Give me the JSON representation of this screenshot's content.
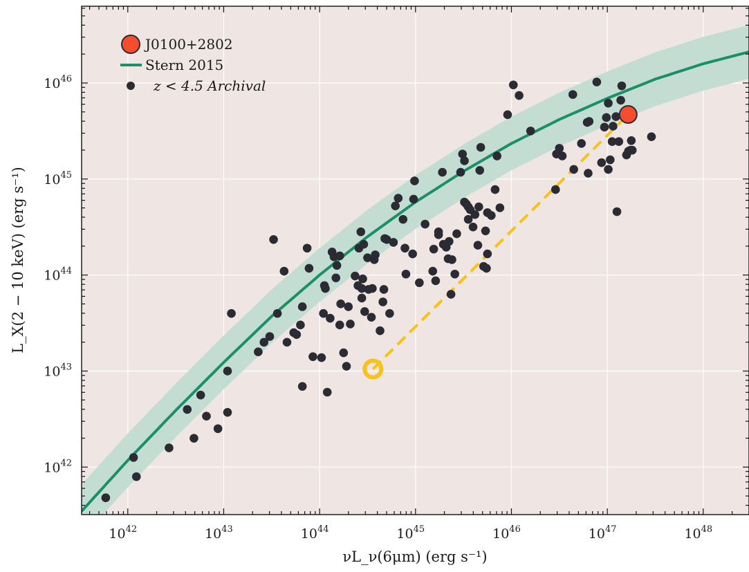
{
  "chart_data": {
    "type": "scatter",
    "xlabel": "νL_ν(6μm)  (erg s⁻¹)",
    "ylabel": "L_X(2 − 10 keV)  (erg s⁻¹)",
    "x_scale": "log",
    "y_scale": "log",
    "xlim": [
      3.3e+41,
      3e+48
    ],
    "ylim": [
      3.2e+41,
      6.3e+46
    ],
    "grid": true,
    "legend_position": "top-left",
    "colors": {
      "background": "#efe6e4",
      "band": "#c4ddd2",
      "stern_line": "#1b8f6a",
      "archival": "#2b2b33",
      "target": "#f54d2d",
      "obscured_ring": "#f8c21a"
    },
    "x_ticks": [
      {
        "exp": 42,
        "label": "10",
        "sup": "42"
      },
      {
        "exp": 43,
        "label": "10",
        "sup": "43"
      },
      {
        "exp": 44,
        "label": "10",
        "sup": "44"
      },
      {
        "exp": 45,
        "label": "10",
        "sup": "45"
      },
      {
        "exp": 46,
        "label": "10",
        "sup": "46"
      },
      {
        "exp": 47,
        "label": "10",
        "sup": "47"
      },
      {
        "exp": 48,
        "label": "10",
        "sup": "48"
      }
    ],
    "y_ticks": [
      {
        "exp": 42,
        "label": "10",
        "sup": "42"
      },
      {
        "exp": 43,
        "label": "10",
        "sup": "43"
      },
      {
        "exp": 44,
        "label": "10",
        "sup": "44"
      },
      {
        "exp": 45,
        "label": "10",
        "sup": "45"
      },
      {
        "exp": 46,
        "label": "10",
        "sup": "46"
      }
    ],
    "legend": [
      {
        "label": "J0100+2802",
        "marker": "target"
      },
      {
        "label": "Stern 2015",
        "marker": "line"
      },
      {
        "label": "z < 4.5 Archival",
        "marker": "dot"
      }
    ],
    "stern_curve": {
      "name": "Stern 2015",
      "points": [
        [
          41.5,
          41.52
        ],
        [
          42.0,
          42.07
        ],
        [
          42.5,
          42.59
        ],
        [
          43.0,
          43.09
        ],
        [
          43.5,
          43.57
        ],
        [
          44.0,
          44.0
        ],
        [
          44.5,
          44.4
        ],
        [
          45.0,
          44.76
        ],
        [
          45.5,
          45.08
        ],
        [
          46.0,
          45.37
        ],
        [
          46.5,
          45.62
        ],
        [
          47.0,
          45.84
        ],
        [
          47.5,
          46.04
        ],
        [
          48.0,
          46.2
        ],
        [
          48.5,
          46.33
        ]
      ],
      "band_halfwidth_dex": 0.28
    },
    "j0100": {
      "name": "J0100+2802",
      "x": 1.65e+47,
      "y": 4.7e+45
    },
    "j0100_obscured": {
      "x": 3.6e+44,
      "y": 1.05e+43
    },
    "archival_log_points": [
      [
        41.77,
        41.68
      ],
      [
        42.06,
        42.1
      ],
      [
        42.09,
        41.9
      ],
      [
        42.43,
        42.2
      ],
      [
        42.62,
        42.6
      ],
      [
        42.69,
        42.3
      ],
      [
        42.76,
        42.75
      ],
      [
        42.82,
        42.53
      ],
      [
        42.94,
        42.4
      ],
      [
        43.04,
        42.57
      ],
      [
        43.04,
        43.0
      ],
      [
        43.08,
        43.6
      ],
      [
        43.36,
        43.2
      ],
      [
        43.42,
        43.3
      ],
      [
        43.48,
        43.36
      ],
      [
        43.52,
        44.37
      ],
      [
        43.56,
        43.6
      ],
      [
        43.63,
        44.04
      ],
      [
        43.66,
        43.3
      ],
      [
        43.73,
        43.4
      ],
      [
        43.76,
        43.38
      ],
      [
        43.8,
        43.48
      ],
      [
        43.82,
        43.67
      ],
      [
        43.82,
        42.84
      ],
      [
        43.87,
        44.28
      ],
      [
        43.89,
        44.07
      ],
      [
        43.93,
        43.15
      ],
      [
        44.02,
        43.14
      ],
      [
        44.04,
        43.6
      ],
      [
        44.05,
        43.89
      ],
      [
        44.06,
        43.86
      ],
      [
        44.08,
        42.78
      ],
      [
        44.11,
        43.55
      ],
      [
        44.13,
        44.24
      ],
      [
        44.15,
        44.19
      ],
      [
        44.17,
        43.97
      ],
      [
        44.18,
        44.1
      ],
      [
        44.21,
        43.48
      ],
      [
        44.21,
        44.2
      ],
      [
        44.22,
        43.7
      ],
      [
        44.25,
        43.19
      ],
      [
        44.28,
        43.05
      ],
      [
        44.3,
        43.67
      ],
      [
        44.32,
        43.49
      ],
      [
        44.37,
        43.99
      ],
      [
        44.4,
        43.89
      ],
      [
        44.41,
        44.28
      ],
      [
        44.43,
        44.45
      ],
      [
        44.44,
        43.76
      ],
      [
        44.44,
        43.86
      ],
      [
        44.45,
        43.96
      ],
      [
        44.46,
        44.32
      ],
      [
        44.47,
        43.62
      ],
      [
        44.5,
        44.18
      ],
      [
        44.51,
        43.85
      ],
      [
        44.54,
        43.56
      ],
      [
        44.55,
        43.86
      ],
      [
        44.57,
        44.16
      ],
      [
        44.58,
        44.21
      ],
      [
        44.63,
        43.42
      ],
      [
        44.66,
        43.72
      ],
      [
        44.67,
        43.85
      ],
      [
        44.68,
        44.38
      ],
      [
        44.7,
        44.37
      ],
      [
        44.73,
        43.6
      ],
      [
        44.77,
        44.34
      ],
      [
        44.79,
        44.72
      ],
      [
        44.82,
        44.8
      ],
      [
        44.87,
        44.58
      ],
      [
        44.89,
        44.28
      ],
      [
        44.9,
        44.01
      ],
      [
        44.97,
        44.22
      ],
      [
        44.98,
        44.79
      ],
      [
        44.99,
        44.98
      ],
      [
        45.04,
        43.92
      ],
      [
        45.1,
        44.53
      ],
      [
        45.18,
        44.04
      ],
      [
        45.19,
        44.27
      ],
      [
        45.21,
        43.94
      ],
      [
        45.24,
        44.45
      ],
      [
        45.24,
        44.42
      ],
      [
        45.28,
        45.07
      ],
      [
        45.29,
        44.32
      ],
      [
        45.32,
        44.29
      ],
      [
        45.34,
        44.17
      ],
      [
        45.35,
        44.35
      ],
      [
        45.37,
        43.8
      ],
      [
        45.38,
        44.16
      ],
      [
        45.41,
        44.01
      ],
      [
        45.43,
        44.43
      ],
      [
        45.47,
        45.07
      ],
      [
        45.49,
        45.26
      ],
      [
        45.51,
        44.76
      ],
      [
        45.51,
        45.19
      ],
      [
        45.53,
        44.74
      ],
      [
        45.55,
        44.58
      ],
      [
        45.55,
        44.71
      ],
      [
        45.57,
        44.68
      ],
      [
        45.6,
        44.5
      ],
      [
        45.62,
        44.63
      ],
      [
        45.65,
        44.31
      ],
      [
        45.66,
        44.71
      ],
      [
        45.67,
        45.09
      ],
      [
        45.68,
        45.33
      ],
      [
        45.71,
        44.09
      ],
      [
        45.73,
        44.46
      ],
      [
        45.74,
        44.07
      ],
      [
        45.75,
        44.22
      ],
      [
        45.75,
        44.65
      ],
      [
        45.79,
        44.62
      ],
      [
        45.83,
        44.89
      ],
      [
        45.85,
        45.24
      ],
      [
        45.88,
        44.7
      ],
      [
        45.96,
        45.67
      ],
      [
        46.02,
        45.98
      ],
      [
        46.08,
        45.87
      ],
      [
        46.2,
        45.5
      ],
      [
        46.46,
        44.89
      ],
      [
        46.47,
        45.26
      ],
      [
        46.5,
        45.32
      ],
      [
        46.53,
        45.24
      ],
      [
        46.64,
        45.88
      ],
      [
        46.65,
        45.1
      ],
      [
        46.73,
        45.37
      ],
      [
        46.79,
        45.59
      ],
      [
        46.8,
        45.06
      ],
      [
        46.81,
        45.6
      ],
      [
        46.89,
        46.01
      ],
      [
        46.94,
        45.17
      ],
      [
        46.97,
        45.54
      ],
      [
        46.99,
        45.64
      ],
      [
        47.01,
        45.1
      ],
      [
        47.01,
        45.79
      ],
      [
        47.03,
        45.2
      ],
      [
        47.05,
        45.39
      ],
      [
        47.06,
        45.55
      ],
      [
        47.09,
        45.65
      ],
      [
        47.1,
        44.66
      ],
      [
        47.12,
        45.39
      ],
      [
        47.14,
        45.82
      ],
      [
        47.15,
        45.97
      ],
      [
        47.2,
        45.25
      ],
      [
        47.22,
        45.29
      ],
      [
        47.24,
        45.3
      ],
      [
        47.25,
        45.4
      ],
      [
        47.26,
        45.3
      ],
      [
        47.46,
        45.44
      ]
    ]
  }
}
